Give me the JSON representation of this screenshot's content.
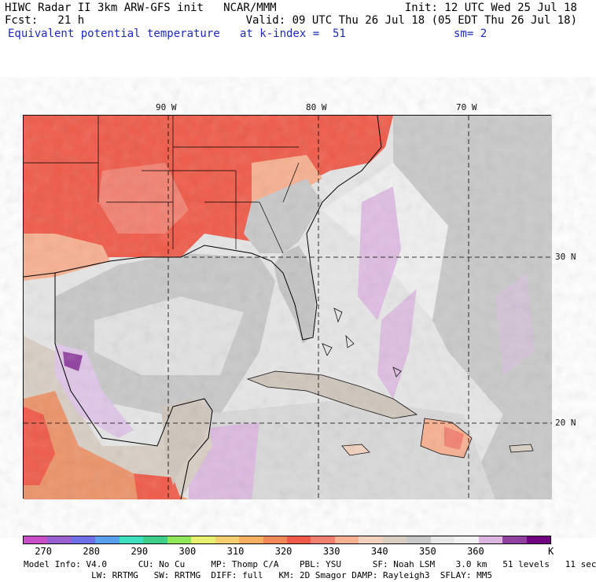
{
  "header": {
    "line1_left": "HIWC Radar II 3km ARW-GFS init   NCAR/MMM",
    "line1_right": "Init: 12 UTC Wed 25 Jul 18",
    "line2_left": "Fcst:   21 h",
    "line2_right": "Valid: 09 UTC Thu 26 Jul 18 (05 EDT Thu 26 Jul 18)",
    "field_name": "Equivalent potential temperature",
    "level": "at k-index =  51",
    "smooth": "sm= 2"
  },
  "map": {
    "lon_labels": [
      "90 W",
      "80 W",
      "70 W"
    ],
    "lat_labels": [
      "30 N",
      "20 N"
    ]
  },
  "colorbar": {
    "unit": "K",
    "labels": [
      "270",
      "280",
      "290",
      "300",
      "310",
      "320",
      "330",
      "340",
      "350",
      "360"
    ],
    "colors": [
      "#c84fc8",
      "#9860d0",
      "#6f6fe8",
      "#5aa0f0",
      "#3ee0c0",
      "#3ed08a",
      "#8fe85a",
      "#e8f070",
      "#f5d070",
      "#f8b060",
      "#f08858",
      "#f05a48",
      "#f28070",
      "#f8b090",
      "#f2d2be",
      "#d8cec4",
      "#c8c8c8",
      "#e8e8e8",
      "#f2f2f2",
      "#dcb4e0",
      "#9040a0",
      "#700080"
    ]
  },
  "footer": {
    "line1": "Model Info: V4.0      CU: No Cu     MP: Thomp C/A    PBL: YSU      SF: Noah LSM    3.0 km   51 levels   11 sec",
    "line2": "             LW: RRTMG   SW: RRTMG  DIFF: full   KM: 2D Smagor DAMP: Rayleigh3  SFLAY: MM5"
  }
}
